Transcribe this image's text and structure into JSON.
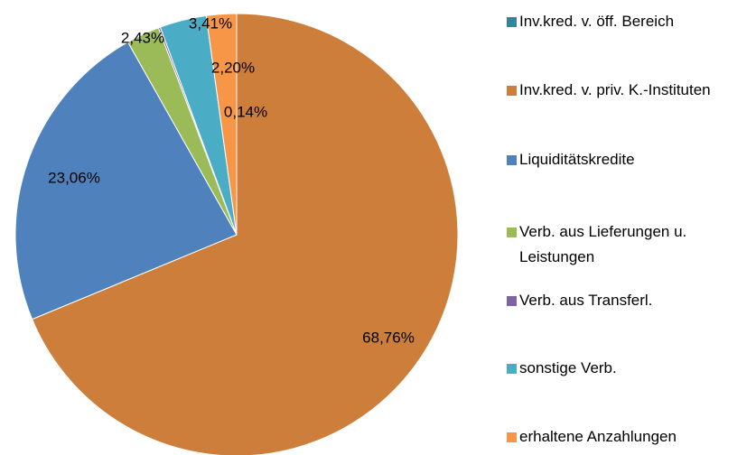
{
  "chart_data": {
    "type": "pie",
    "categories": [
      "Inv.kred. v. öff. Bereich",
      "Inv.kred. v. priv. K.-Instituten",
      "Liquiditätskredite",
      "Verb. aus Lieferungen u. Leistungen",
      "Verb. aus Transferl.",
      "sonstige Verb.",
      "erhaltene Anzahlungen"
    ],
    "values": [
      0,
      68.76,
      23.06,
      2.43,
      0.14,
      3.41,
      2.2
    ],
    "value_labels": [
      null,
      "68,76%",
      "23,06%",
      "2,43%",
      "0,14%",
      "3,41%",
      "2,20%"
    ],
    "colors": [
      "#31859C",
      "#CD7E3A",
      "#4F81BD",
      "#9BBB59",
      "#8064A2",
      "#4BACC6",
      "#F79646"
    ],
    "legend": "right"
  }
}
